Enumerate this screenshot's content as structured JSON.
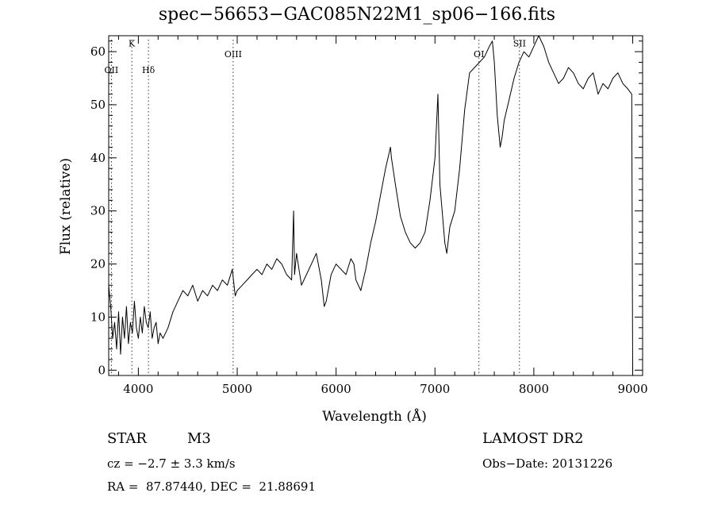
{
  "header": {
    "title": "spec−56653−GAC085N22M1_sp06−166.fits"
  },
  "info": {
    "object_class": "STAR",
    "subclass": "M3",
    "survey": "LAMOST DR2",
    "cz": "cz = −2.7 ± 3.3 km/s",
    "obs_date": "Obs−Date: 20131226",
    "coords": "RA =  87.87440, DEC =  21.88691"
  },
  "chart_data": {
    "type": "line",
    "xlabel": "Wavelength (Å)",
    "ylabel": "Flux (relative)",
    "xlim": [
      3700,
      9100
    ],
    "ylim": [
      -1,
      63
    ],
    "xticks": [
      4000,
      5000,
      6000,
      7000,
      8000,
      9000
    ],
    "yticks": [
      0,
      10,
      20,
      30,
      40,
      50,
      60
    ],
    "grid": false,
    "lines": [
      {
        "label": "OII",
        "x": 3727,
        "label_y": 56
      },
      {
        "label": "K",
        "x": 3934,
        "label_y": 61
      },
      {
        "label": "Hδ",
        "x": 4102,
        "label_y": 56
      },
      {
        "label": "OIII",
        "x": 4959,
        "label_y": 59
      },
      {
        "label": "OI",
        "x": 7445,
        "label_y": 59
      },
      {
        "label": "SII",
        "x": 7855,
        "label_y": 61
      }
    ],
    "series": [
      {
        "x": [
          3700,
          3720,
          3740,
          3760,
          3780,
          3800,
          3820,
          3840,
          3860,
          3880,
          3900,
          3920,
          3940,
          3960,
          3980,
          4000,
          4020,
          4040,
          4060,
          4080,
          4100,
          4120,
          4140,
          4160,
          4180,
          4200,
          4220,
          4250,
          4300,
          4350,
          4400,
          4450,
          4500,
          4550,
          4600,
          4650,
          4700,
          4750,
          4800,
          4850,
          4900,
          4950,
          4980,
          5000,
          5050,
          5100,
          5150,
          5200,
          5250,
          5300,
          5350,
          5400,
          5450,
          5500,
          5550,
          5570,
          5580,
          5600,
          5650,
          5700,
          5750,
          5800,
          5850,
          5880,
          5900,
          5950,
          6000,
          6050,
          6100,
          6150,
          6180,
          6200,
          6250,
          6300,
          6350,
          6400,
          6450,
          6500,
          6550,
          6560,
          6600,
          6650,
          6700,
          6750,
          6800,
          6850,
          6900,
          6950,
          7000,
          7030,
          7050,
          7100,
          7120,
          7150,
          7200,
          7250,
          7300,
          7350,
          7400,
          7450,
          7500,
          7550,
          7580,
          7600,
          7630,
          7660,
          7680,
          7700,
          7750,
          7800,
          7850,
          7900,
          7950,
          8000,
          8050,
          8100,
          8150,
          8200,
          8250,
          8300,
          8350,
          8400,
          8450,
          8500,
          8550,
          8600,
          8650,
          8700,
          8750,
          8800,
          8850,
          8900,
          8950,
          8990,
          9000
        ],
        "values": [
          16,
          12,
          6,
          9,
          4,
          11,
          3,
          10,
          6,
          12,
          5,
          9,
          7,
          13,
          8,
          6,
          10,
          7,
          12,
          9,
          8,
          11,
          6,
          8,
          9,
          5,
          7,
          6,
          8,
          11,
          13,
          15,
          14,
          16,
          13,
          15,
          14,
          16,
          15,
          17,
          16,
          19,
          14,
          15,
          16,
          17,
          18,
          19,
          18,
          20,
          19,
          21,
          20,
          18,
          17,
          30,
          18,
          22,
          16,
          18,
          20,
          22,
          17,
          12,
          13,
          18,
          20,
          19,
          18,
          21,
          20,
          17,
          15,
          19,
          24,
          28,
          33,
          38,
          42,
          40,
          35,
          29,
          26,
          24,
          23,
          24,
          26,
          32,
          40,
          52,
          35,
          24,
          22,
          27,
          30,
          38,
          49,
          56,
          57,
          58,
          59,
          61,
          62,
          58,
          48,
          42,
          44,
          47,
          51,
          55,
          58,
          60,
          59,
          61,
          63,
          61,
          58,
          56,
          54,
          55,
          57,
          56,
          54,
          53,
          55,
          56,
          52,
          54,
          53,
          55,
          56,
          54,
          53,
          52,
          0
        ]
      }
    ]
  }
}
